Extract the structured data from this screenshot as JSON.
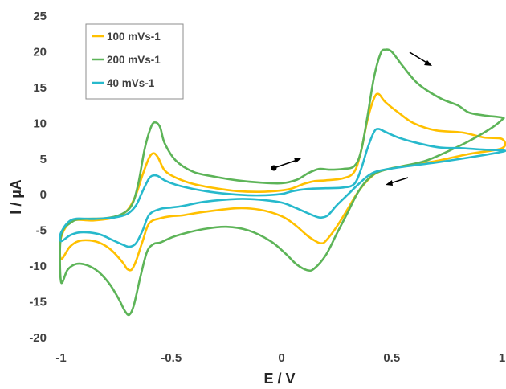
{
  "chart_data": {
    "type": "line",
    "xlabel": "E / V",
    "ylabel": "I / µA",
    "xlim": [
      -1,
      1
    ],
    "ylim": [
      -20,
      25
    ],
    "x_ticks": [
      "-1",
      "-0.5",
      "0",
      "0.5",
      "1"
    ],
    "y_ticks": [
      "25",
      "20",
      "15",
      "10",
      "5",
      "0",
      "-5",
      "-10",
      "-15",
      "-20"
    ],
    "grid": false,
    "legend_position": "top-left",
    "series": [
      {
        "name": "100 mVs-1",
        "color": "#FFC000",
        "points": [
          [
            1.0,
            7.8
          ],
          [
            0.92,
            8.0
          ],
          [
            0.82,
            8.7
          ],
          [
            0.7,
            9.0
          ],
          [
            0.6,
            10.0
          ],
          [
            0.53,
            11.5
          ],
          [
            0.47,
            13.0
          ],
          [
            0.44,
            14.1
          ],
          [
            0.42,
            13.5
          ],
          [
            0.39,
            10.5
          ],
          [
            0.36,
            6.0
          ],
          [
            0.33,
            3.2
          ],
          [
            0.28,
            2.3
          ],
          [
            0.2,
            2.0
          ],
          [
            0.15,
            1.9
          ],
          [
            0.1,
            1.5
          ],
          [
            0.05,
            0.9
          ],
          [
            0.0,
            0.6
          ],
          [
            -0.1,
            0.4
          ],
          [
            -0.2,
            0.5
          ],
          [
            -0.3,
            0.9
          ],
          [
            -0.4,
            1.5
          ],
          [
            -0.48,
            2.4
          ],
          [
            -0.53,
            3.4
          ],
          [
            -0.56,
            5.2
          ],
          [
            -0.58,
            5.8
          ],
          [
            -0.6,
            5.2
          ],
          [
            -0.63,
            2.8
          ],
          [
            -0.66,
            0.0
          ],
          [
            -0.7,
            -2.2
          ],
          [
            -0.76,
            -3.2
          ],
          [
            -0.85,
            -3.6
          ],
          [
            -0.95,
            -3.7
          ],
          [
            -1.0,
            -6.0
          ],
          [
            -1.0,
            -9.0
          ],
          [
            -0.96,
            -7.3
          ],
          [
            -0.92,
            -6.5
          ],
          [
            -0.87,
            -6.4
          ],
          [
            -0.82,
            -6.8
          ],
          [
            -0.77,
            -7.8
          ],
          [
            -0.72,
            -9.5
          ],
          [
            -0.7,
            -10.4
          ],
          [
            -0.68,
            -10.5
          ],
          [
            -0.66,
            -9.3
          ],
          [
            -0.63,
            -6.5
          ],
          [
            -0.6,
            -4.0
          ],
          [
            -0.55,
            -3.3
          ],
          [
            -0.5,
            -3.0
          ],
          [
            -0.45,
            -2.9
          ],
          [
            -0.35,
            -2.4
          ],
          [
            -0.2,
            -1.9
          ],
          [
            -0.1,
            -2.1
          ],
          [
            0.0,
            -3.0
          ],
          [
            0.06,
            -4.2
          ],
          [
            0.12,
            -5.8
          ],
          [
            0.16,
            -6.6
          ],
          [
            0.18,
            -6.8
          ],
          [
            0.2,
            -6.5
          ],
          [
            0.25,
            -4.5
          ],
          [
            0.3,
            -2.0
          ],
          [
            0.35,
            0.5
          ],
          [
            0.4,
            2.3
          ],
          [
            0.45,
            3.3
          ],
          [
            0.55,
            4.0
          ],
          [
            0.7,
            4.7
          ],
          [
            0.85,
            5.7
          ],
          [
            1.0,
            6.5
          ]
        ]
      },
      {
        "name": "200 mVs-1",
        "color": "#5DB458",
        "points": [
          [
            1.0,
            10.8
          ],
          [
            0.92,
            11.1
          ],
          [
            0.85,
            11.5
          ],
          [
            0.8,
            12.5
          ],
          [
            0.72,
            13.5
          ],
          [
            0.62,
            15.5
          ],
          [
            0.55,
            18.0
          ],
          [
            0.5,
            20.0
          ],
          [
            0.47,
            20.3
          ],
          [
            0.45,
            19.8
          ],
          [
            0.42,
            16.5
          ],
          [
            0.39,
            11.0
          ],
          [
            0.36,
            6.0
          ],
          [
            0.33,
            4.0
          ],
          [
            0.28,
            3.6
          ],
          [
            0.22,
            3.5
          ],
          [
            0.17,
            3.6
          ],
          [
            0.12,
            3.0
          ],
          [
            0.07,
            2.1
          ],
          [
            0.0,
            1.6
          ],
          [
            -0.1,
            1.7
          ],
          [
            -0.2,
            2.0
          ],
          [
            -0.3,
            2.5
          ],
          [
            -0.4,
            3.2
          ],
          [
            -0.48,
            4.8
          ],
          [
            -0.53,
            7.2
          ],
          [
            -0.55,
            9.4
          ],
          [
            -0.57,
            10.1
          ],
          [
            -0.59,
            9.6
          ],
          [
            -0.62,
            6.5
          ],
          [
            -0.65,
            1.5
          ],
          [
            -0.68,
            -1.5
          ],
          [
            -0.73,
            -2.8
          ],
          [
            -0.8,
            -3.3
          ],
          [
            -0.9,
            -3.4
          ],
          [
            -0.95,
            -3.8
          ],
          [
            -1.0,
            -5.8
          ],
          [
            -1.0,
            -12.2
          ],
          [
            -0.97,
            -10.5
          ],
          [
            -0.93,
            -9.7
          ],
          [
            -0.88,
            -9.9
          ],
          [
            -0.83,
            -10.8
          ],
          [
            -0.78,
            -12.5
          ],
          [
            -0.74,
            -14.5
          ],
          [
            -0.71,
            -16.3
          ],
          [
            -0.69,
            -16.8
          ],
          [
            -0.67,
            -15.5
          ],
          [
            -0.64,
            -11.5
          ],
          [
            -0.61,
            -8.0
          ],
          [
            -0.58,
            -6.9
          ],
          [
            -0.55,
            -6.7
          ],
          [
            -0.5,
            -6.0
          ],
          [
            -0.45,
            -5.5
          ],
          [
            -0.35,
            -4.8
          ],
          [
            -0.25,
            -4.5
          ],
          [
            -0.15,
            -5.0
          ],
          [
            -0.05,
            -6.5
          ],
          [
            0.02,
            -8.3
          ],
          [
            0.07,
            -9.8
          ],
          [
            0.12,
            -10.6
          ],
          [
            0.15,
            -10.3
          ],
          [
            0.2,
            -8.5
          ],
          [
            0.25,
            -5.5
          ],
          [
            0.3,
            -2.5
          ],
          [
            0.35,
            0.5
          ],
          [
            0.4,
            2.4
          ],
          [
            0.45,
            3.3
          ],
          [
            0.55,
            4.0
          ],
          [
            0.65,
            4.7
          ],
          [
            0.75,
            6.0
          ],
          [
            0.85,
            7.5
          ],
          [
            0.95,
            9.3
          ],
          [
            1.0,
            10.5
          ]
        ]
      },
      {
        "name": "40 mVs-1",
        "color": "#27B9CC",
        "points": [
          [
            1.0,
            6.2
          ],
          [
            0.92,
            6.3
          ],
          [
            0.82,
            6.5
          ],
          [
            0.72,
            6.6
          ],
          [
            0.62,
            7.2
          ],
          [
            0.53,
            8.0
          ],
          [
            0.47,
            8.8
          ],
          [
            0.44,
            9.2
          ],
          [
            0.42,
            8.8
          ],
          [
            0.39,
            6.5
          ],
          [
            0.36,
            3.5
          ],
          [
            0.33,
            1.5
          ],
          [
            0.28,
            1.0
          ],
          [
            0.2,
            0.9
          ],
          [
            0.12,
            0.8
          ],
          [
            0.05,
            0.5
          ],
          [
            0.0,
            0.1
          ],
          [
            -0.1,
            -0.1
          ],
          [
            -0.2,
            0.0
          ],
          [
            -0.3,
            0.3
          ],
          [
            -0.4,
            0.8
          ],
          [
            -0.48,
            1.4
          ],
          [
            -0.53,
            2.0
          ],
          [
            -0.56,
            2.6
          ],
          [
            -0.58,
            2.7
          ],
          [
            -0.6,
            2.3
          ],
          [
            -0.63,
            0.5
          ],
          [
            -0.66,
            -1.5
          ],
          [
            -0.7,
            -2.7
          ],
          [
            -0.76,
            -3.2
          ],
          [
            -0.85,
            -3.4
          ],
          [
            -0.95,
            -3.5
          ],
          [
            -1.0,
            -5.3
          ],
          [
            -1.0,
            -6.5
          ],
          [
            -0.96,
            -5.7
          ],
          [
            -0.92,
            -5.3
          ],
          [
            -0.87,
            -5.3
          ],
          [
            -0.82,
            -5.6
          ],
          [
            -0.77,
            -6.3
          ],
          [
            -0.72,
            -7.0
          ],
          [
            -0.69,
            -7.3
          ],
          [
            -0.66,
            -6.8
          ],
          [
            -0.63,
            -5.0
          ],
          [
            -0.6,
            -2.8
          ],
          [
            -0.55,
            -2.0
          ],
          [
            -0.5,
            -1.8
          ],
          [
            -0.45,
            -1.6
          ],
          [
            -0.35,
            -1.0
          ],
          [
            -0.2,
            -0.6
          ],
          [
            -0.1,
            -0.7
          ],
          [
            0.0,
            -1.1
          ],
          [
            0.06,
            -1.8
          ],
          [
            0.12,
            -2.6
          ],
          [
            0.16,
            -3.1
          ],
          [
            0.18,
            -3.2
          ],
          [
            0.21,
            -2.9
          ],
          [
            0.25,
            -1.5
          ],
          [
            0.3,
            0.0
          ],
          [
            0.35,
            1.5
          ],
          [
            0.4,
            2.8
          ],
          [
            0.45,
            3.4
          ],
          [
            0.55,
            3.9
          ],
          [
            0.7,
            4.5
          ],
          [
            0.85,
            5.2
          ],
          [
            1.0,
            6.0
          ]
        ]
      }
    ]
  }
}
